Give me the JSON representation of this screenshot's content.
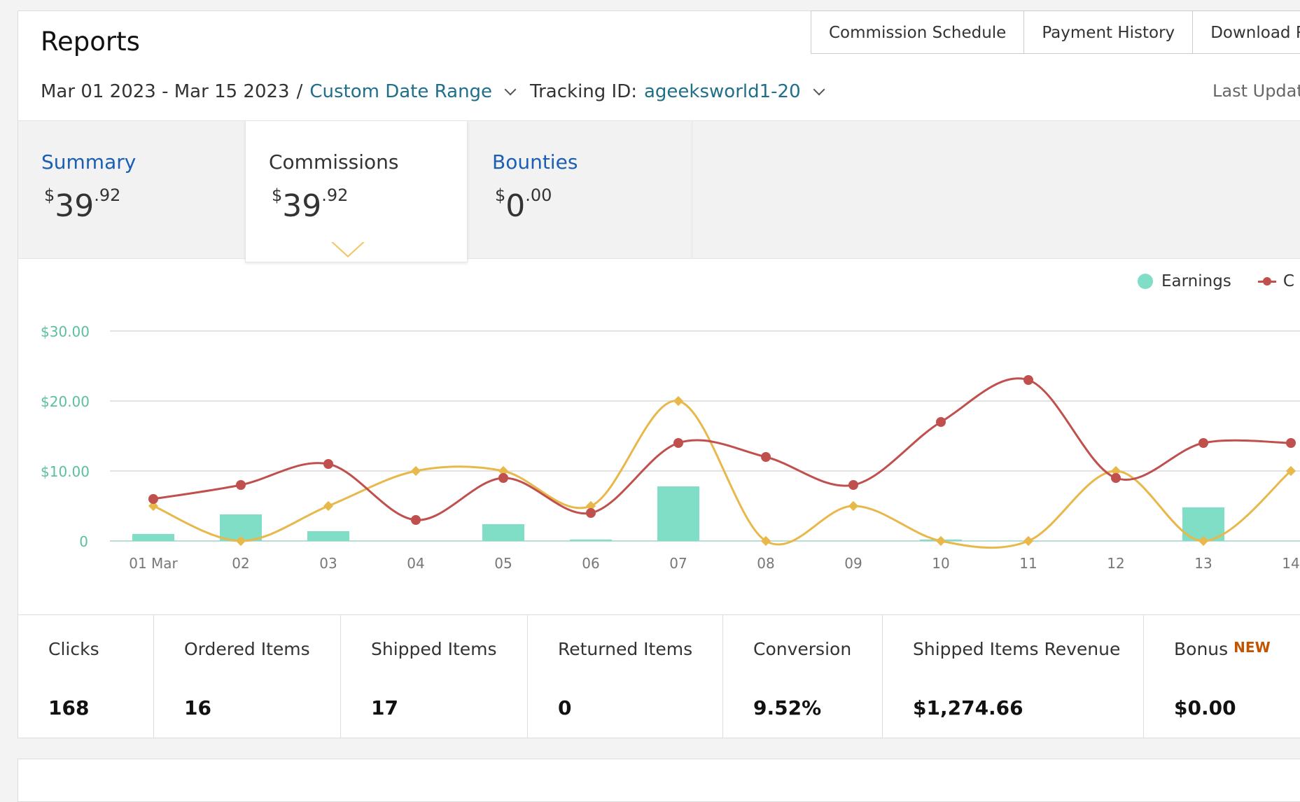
{
  "header": {
    "title": "Reports",
    "buttons": [
      "Commission Schedule",
      "Payment History",
      "Download Repo"
    ]
  },
  "filters": {
    "date_range": "Mar 01 2023 - Mar 15 2023",
    "separator": "/",
    "range_type": "Custom Date Range",
    "tracking_label": "Tracking ID:",
    "tracking_id": "ageeksworld1-20",
    "last_updated": "Last Updat"
  },
  "tabs": [
    {
      "label": "Summary",
      "currency": "$",
      "whole": "39",
      "cents": ".92"
    },
    {
      "label": "Commissions",
      "currency": "$",
      "whole": "39",
      "cents": ".92"
    },
    {
      "label": "Bounties",
      "currency": "$",
      "whole": "0",
      "cents": ".00"
    }
  ],
  "legend": {
    "earnings": "Earnings",
    "second": "C"
  },
  "colors": {
    "earnings": "#7fdec5",
    "red_series": "#c0504d",
    "yellow_series": "#e8b84a",
    "axis_label": "#5bbf9f",
    "link": "#1f6f8b",
    "tab_link": "#1a5fb4",
    "new_badge": "#c45500"
  },
  "chart_data": {
    "type": "bar+line",
    "ylim": [
      0,
      30
    ],
    "yticks": [
      "$30.00",
      "$20.00",
      "$10.00",
      "0"
    ],
    "ytick_values": [
      30,
      20,
      10,
      0
    ],
    "categories": [
      "01 Mar",
      "02",
      "03",
      "04",
      "05",
      "06",
      "07",
      "08",
      "09",
      "10",
      "11",
      "12",
      "13",
      "14"
    ],
    "series": [
      {
        "name": "Earnings",
        "type": "bar",
        "values": [
          1.0,
          3.8,
          1.4,
          0,
          2.4,
          0.2,
          7.8,
          0,
          0,
          0.2,
          0,
          0,
          4.8,
          0
        ]
      },
      {
        "type": "line",
        "color": "red",
        "values": [
          6,
          8,
          11,
          3,
          9,
          4,
          14,
          12,
          8,
          17,
          23,
          9,
          14,
          14
        ]
      },
      {
        "type": "line",
        "color": "yellow",
        "values": [
          5,
          0,
          5,
          10,
          10,
          5,
          20,
          0,
          5,
          0,
          0,
          10,
          0,
          10
        ]
      }
    ]
  },
  "metrics": [
    {
      "label": "Clicks",
      "value": "168"
    },
    {
      "label": "Ordered Items",
      "value": "16"
    },
    {
      "label": "Shipped Items",
      "value": "17"
    },
    {
      "label": "Returned Items",
      "value": "0"
    },
    {
      "label": "Conversion",
      "value": "9.52%"
    },
    {
      "label": "Shipped Items Revenue",
      "value": "$1,274.66"
    },
    {
      "label": "Bonus",
      "value": "$0.00",
      "badge": "NEW"
    }
  ]
}
